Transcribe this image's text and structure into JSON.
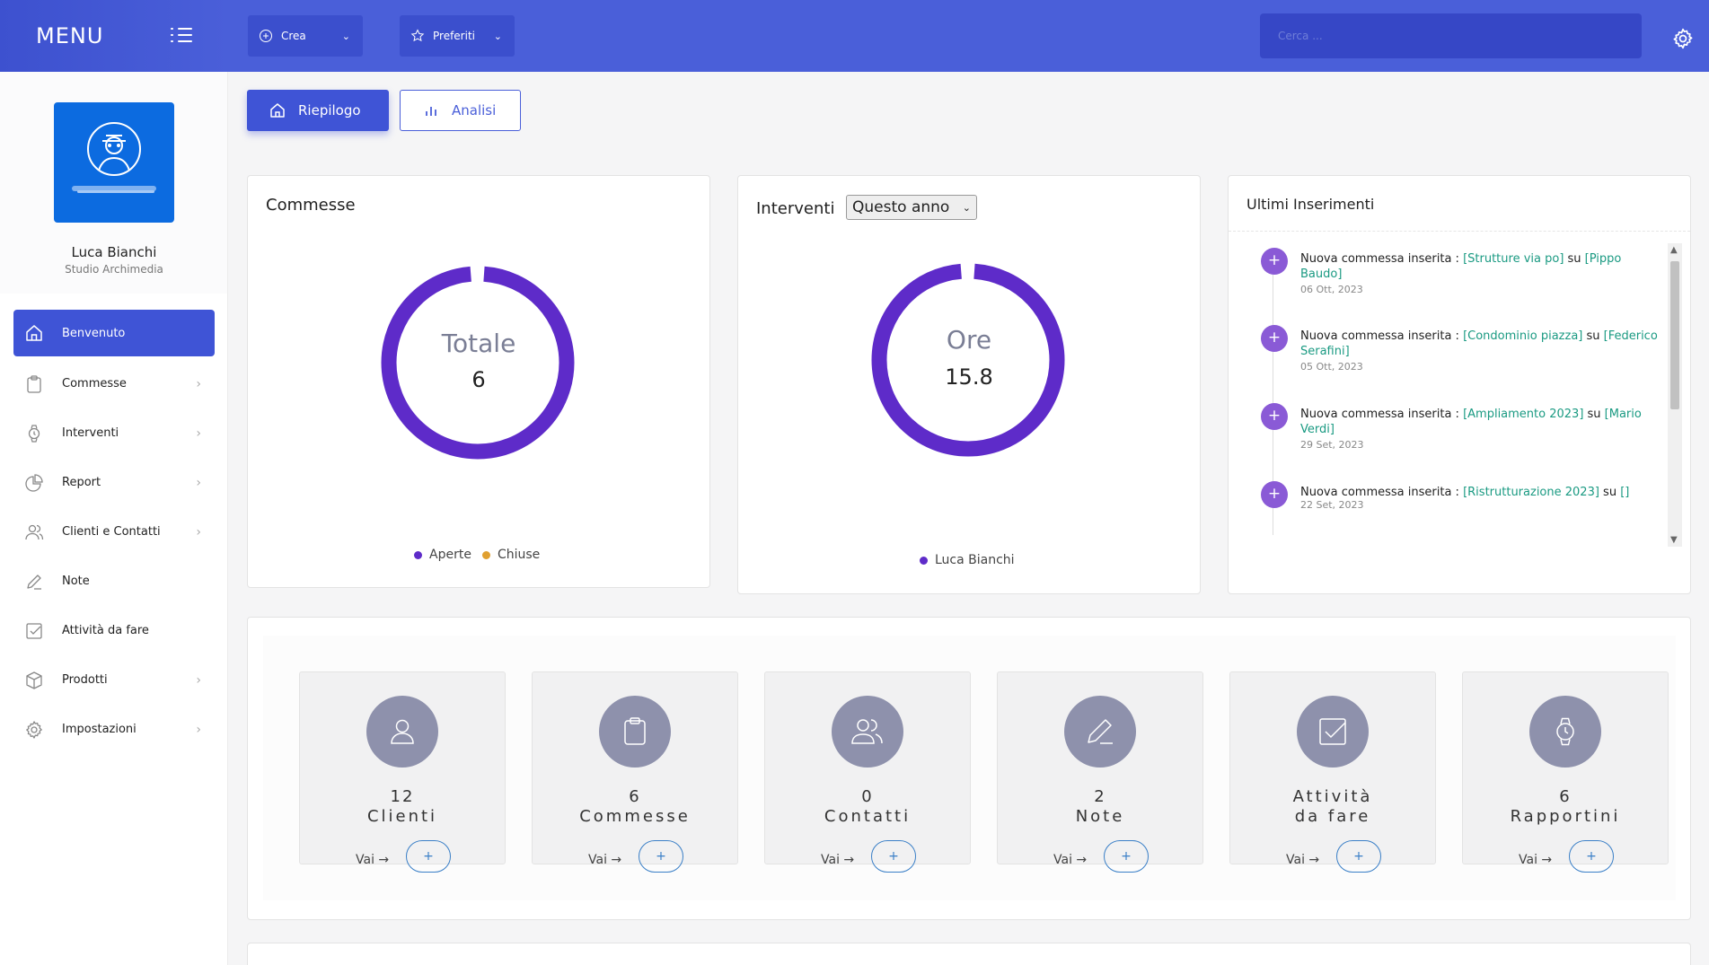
{
  "topbar": {
    "menu_title": "MENU",
    "create_label": "Crea",
    "favorites_label": "Preferiti",
    "search_placeholder": "Cerca ..."
  },
  "profile": {
    "name": "Luca Bianchi",
    "company": "Studio Archimedia"
  },
  "sidebar": {
    "items": [
      {
        "label": "Benvenuto",
        "icon": "home-icon",
        "has_chevron": false,
        "active": true
      },
      {
        "label": "Commesse",
        "icon": "clipboard-icon",
        "has_chevron": true
      },
      {
        "label": "Interventi",
        "icon": "watch-icon",
        "has_chevron": true
      },
      {
        "label": "Report",
        "icon": "pie-chart-icon",
        "has_chevron": true
      },
      {
        "label": "Clienti e Contatti",
        "icon": "users-icon",
        "has_chevron": true
      },
      {
        "label": "Note",
        "icon": "pencil-icon",
        "has_chevron": false
      },
      {
        "label": "Attività da fare",
        "icon": "check-square-icon",
        "has_chevron": false
      },
      {
        "label": "Prodotti",
        "icon": "box-icon",
        "has_chevron": true
      },
      {
        "label": "Impostazioni",
        "icon": "settings-icon",
        "has_chevron": true
      }
    ]
  },
  "tabs": {
    "summary": "Riepilogo",
    "analysis": "Analisi"
  },
  "commesse_card": {
    "title": "Commesse",
    "center_label": "Totale",
    "center_value": "6",
    "legend": [
      {
        "label": "Aperte",
        "color": "#5e2bc9"
      },
      {
        "label": "Chiuse",
        "color": "#e0a030"
      }
    ]
  },
  "interventi_card": {
    "title": "Interventi",
    "period_selected": "Questo anno",
    "center_label": "Ore",
    "center_value": "15.8",
    "legend": [
      {
        "label": "Luca Bianchi",
        "color": "#5e2bc9"
      }
    ]
  },
  "feed": {
    "title": "Ultimi Inserimenti",
    "items": [
      {
        "prefix": "Nuova commessa inserita : ",
        "project": "[Strutture via po]",
        "joiner": " su ",
        "client": "[Pippo Baudo]",
        "date": "06 Ott, 2023"
      },
      {
        "prefix": "Nuova commessa inserita : ",
        "project": "[Condominio piazza]",
        "joiner": " su ",
        "client": "[Federico Serafini]",
        "date": "05 Ott, 2023"
      },
      {
        "prefix": "Nuova commessa inserita : ",
        "project": "[Ampliamento 2023]",
        "joiner": " su ",
        "client": "[Mario Verdi]",
        "date": "29 Set, 2023"
      },
      {
        "prefix": "Nuova commessa inserita : ",
        "project": "[Ristrutturazione 2023]",
        "joiner": " su ",
        "client": "[]",
        "date": "22 Set, 2023"
      }
    ]
  },
  "stats": {
    "go_label": "Vai",
    "add_label": "+",
    "items": [
      {
        "value": "12",
        "label": "Clienti",
        "icon": "user-icon"
      },
      {
        "value": "6",
        "label": "Commesse",
        "icon": "clipboard-icon"
      },
      {
        "value": "0",
        "label": "Contatti",
        "icon": "users-icon"
      },
      {
        "value": "2",
        "label": "Note",
        "icon": "pencil-icon"
      },
      {
        "value": "",
        "label_line1": "Attività",
        "label_line2": "da fare",
        "icon": "check-square-icon"
      },
      {
        "value": "6",
        "label": "Rapportini",
        "icon": "watch-icon"
      }
    ]
  },
  "colors": {
    "brand": "#4a5fd9",
    "donut": "#5e2bc9",
    "link": "#1a9a82",
    "stat_circle": "#8e91ac"
  }
}
